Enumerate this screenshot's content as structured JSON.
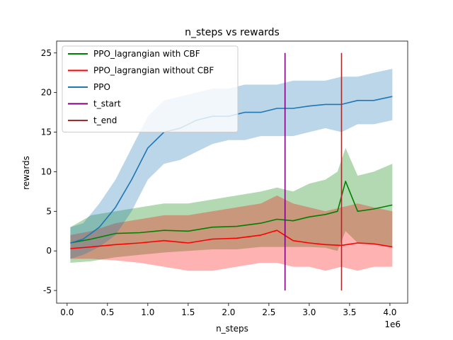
{
  "chart_data": {
    "type": "line",
    "title": "n_steps vs rewards",
    "xlabel": "n_steps",
    "ylabel": "rewards",
    "x_offset_label": "1e6",
    "xlim": [
      -0.13,
      4.22
    ],
    "ylim": [
      -6.6,
      26.5
    ],
    "xticks": [
      0.0,
      0.5,
      1.0,
      1.5,
      2.0,
      2.5,
      3.0,
      3.5,
      4.0
    ],
    "xtick_labels": [
      "0.0",
      "0.5",
      "1.0",
      "1.5",
      "2.0",
      "2.5",
      "3.0",
      "3.5",
      "4.0"
    ],
    "yticks": [
      -5,
      0,
      5,
      10,
      15,
      20,
      25
    ],
    "ytick_labels": [
      "-5",
      "0",
      "5",
      "10",
      "15",
      "20",
      "25"
    ],
    "legend_position": "upper-left",
    "grid": false,
    "series": [
      {
        "name": "PPO_lagrangian with CBF",
        "color": "#008000",
        "x": [
          0.04,
          0.3,
          0.6,
          0.9,
          1.2,
          1.5,
          1.8,
          2.1,
          2.4,
          2.6,
          2.8,
          3.0,
          3.2,
          3.35,
          3.45,
          3.6,
          3.8,
          4.03
        ],
        "y": [
          1.0,
          1.5,
          2.2,
          2.3,
          2.6,
          2.5,
          3.0,
          3.1,
          3.5,
          4.0,
          3.8,
          4.3,
          4.6,
          5.0,
          8.8,
          5.0,
          5.3,
          5.8
        ],
        "band_lower": [
          -1.5,
          -1.3,
          -0.8,
          -0.5,
          -0.2,
          0.0,
          0.2,
          0.2,
          0.5,
          0.5,
          0.5,
          0.5,
          0.4,
          0.0,
          2.5,
          1.0,
          1.0,
          0.5
        ],
        "band_upper": [
          3.0,
          4.5,
          5.0,
          5.5,
          6.0,
          6.0,
          6.5,
          7.0,
          7.5,
          8.0,
          7.5,
          8.5,
          9.0,
          10.0,
          13.0,
          9.5,
          10.0,
          11.0
        ]
      },
      {
        "name": "PPO_lagrangian without CBF",
        "color": "#ff0000",
        "x": [
          0.04,
          0.3,
          0.6,
          0.9,
          1.2,
          1.5,
          1.8,
          2.1,
          2.4,
          2.6,
          2.8,
          3.0,
          3.2,
          3.4,
          3.6,
          3.8,
          4.03
        ],
        "y": [
          0.3,
          0.5,
          0.8,
          1.0,
          1.3,
          1.0,
          1.5,
          1.6,
          2.0,
          2.6,
          1.3,
          1.0,
          0.8,
          0.7,
          1.0,
          0.9,
          0.5
        ],
        "band_lower": [
          -1.0,
          -1.0,
          -1.2,
          -1.5,
          -2.0,
          -2.5,
          -2.5,
          -2.0,
          -1.5,
          -1.5,
          -2.0,
          -2.0,
          -2.5,
          -2.0,
          -2.5,
          -2.0,
          -2.0
        ],
        "band_upper": [
          2.0,
          2.5,
          3.5,
          4.0,
          4.5,
          4.5,
          5.0,
          5.5,
          6.0,
          7.0,
          6.0,
          5.5,
          5.0,
          5.5,
          6.0,
          5.5,
          5.0
        ]
      },
      {
        "name": "PPO",
        "color": "#1f77b4",
        "x": [
          0.04,
          0.2,
          0.4,
          0.6,
          0.8,
          1.0,
          1.2,
          1.4,
          1.6,
          1.8,
          2.0,
          2.2,
          2.4,
          2.6,
          2.8,
          3.0,
          3.2,
          3.4,
          3.6,
          3.8,
          4.03
        ],
        "y": [
          1.0,
          1.5,
          3.0,
          5.5,
          9.0,
          13.0,
          15.0,
          15.5,
          16.5,
          17.0,
          17.0,
          17.5,
          17.5,
          18.0,
          18.0,
          18.3,
          18.5,
          18.5,
          19.0,
          19.0,
          19.5
        ],
        "band_lower": [
          -1.0,
          -0.5,
          0.5,
          2.0,
          5.0,
          9.0,
          11.0,
          11.5,
          12.5,
          13.5,
          14.0,
          14.0,
          14.5,
          14.5,
          14.5,
          15.0,
          15.5,
          15.0,
          16.0,
          16.0,
          16.5
        ],
        "band_upper": [
          3.0,
          3.5,
          6.0,
          9.0,
          13.0,
          17.0,
          19.0,
          19.5,
          20.0,
          20.5,
          20.5,
          21.0,
          21.0,
          21.0,
          21.5,
          21.5,
          21.5,
          22.0,
          22.0,
          22.5,
          23.0
        ]
      },
      {
        "name": "t_start",
        "color": "#800080",
        "type": "vline",
        "x": 2.7,
        "y_range": [
          -5,
          25
        ]
      },
      {
        "name": "t_end",
        "color": "#a52a2a",
        "type": "vline",
        "x": 3.4,
        "y_range": [
          -5,
          25
        ]
      }
    ]
  }
}
